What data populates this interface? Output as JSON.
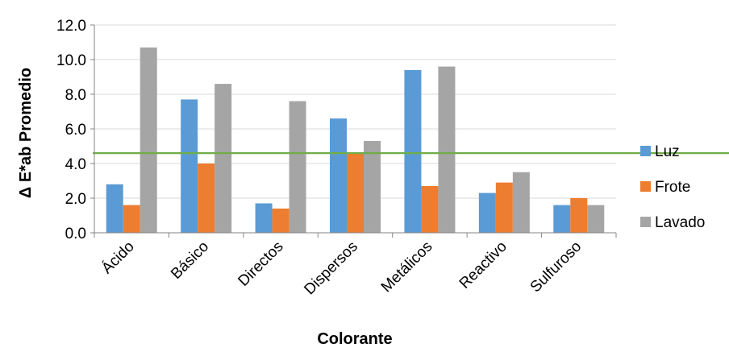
{
  "chart_data": {
    "type": "bar",
    "title": "",
    "xlabel": "Colorante",
    "ylabel": "Δ E*ab Promedio",
    "ylim": [
      0,
      12
    ],
    "yticks": [
      "0.0",
      "2.0",
      "4.0",
      "6.0",
      "8.0",
      "10.0",
      "12.0"
    ],
    "categories": [
      "Ácido",
      "Básico",
      "Directos",
      "Dispersos",
      "Metálicos",
      "Reactivo",
      "Sulfuroso"
    ],
    "series": [
      {
        "name": "Luz",
        "color": "#5B9BD5",
        "values": [
          2.8,
          7.7,
          1.7,
          6.6,
          9.4,
          2.3,
          1.6
        ]
      },
      {
        "name": "Frote",
        "color": "#ED7D31",
        "values": [
          1.6,
          4.0,
          1.4,
          4.6,
          2.7,
          2.9,
          2.0
        ]
      },
      {
        "name": "Lavado",
        "color": "#A5A5A5",
        "values": [
          10.7,
          8.6,
          7.6,
          5.3,
          9.6,
          3.5,
          1.6
        ]
      }
    ],
    "reference_line": {
      "value": 4.6,
      "color": "#70AD47"
    },
    "grid": true,
    "legend_position": "right"
  }
}
